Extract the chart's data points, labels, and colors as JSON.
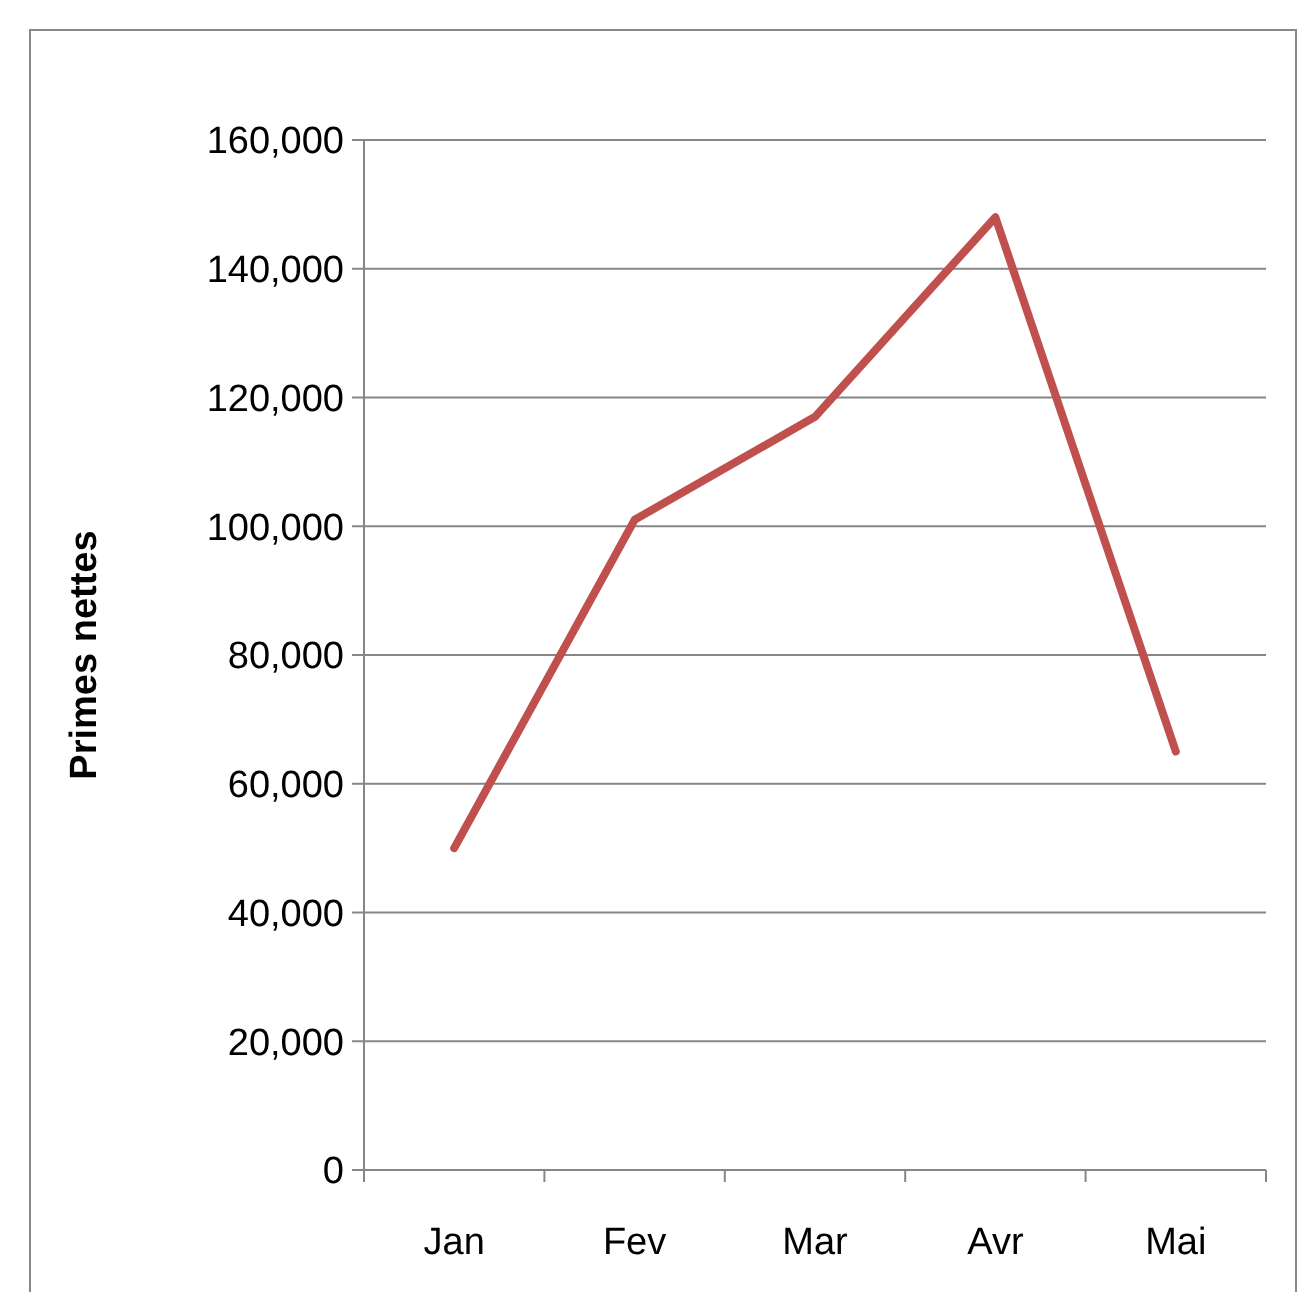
{
  "chart_data": {
    "type": "line",
    "ylabel": "Primes nettes",
    "categories": [
      "Jan",
      "Fev",
      "Mar",
      "Avr",
      "Mai"
    ],
    "series": [
      {
        "color": "#c0504d",
        "values": [
          50000,
          101000,
          117000,
          148000,
          65000
        ]
      }
    ],
    "ylim": [
      0,
      160000
    ],
    "yticks": [
      {
        "value": 0,
        "label": "0"
      },
      {
        "value": 20000,
        "label": "20,000"
      },
      {
        "value": 40000,
        "label": "40,000"
      },
      {
        "value": 60000,
        "label": "60,000"
      },
      {
        "value": 80000,
        "label": "80,000"
      },
      {
        "value": 100000,
        "label": "100,000"
      },
      {
        "value": 120000,
        "label": "120,000"
      },
      {
        "value": 140000,
        "label": "140,000"
      },
      {
        "value": 160000,
        "label": "160,000"
      }
    ],
    "grid": "y",
    "marker": "none",
    "line_style": "solid"
  }
}
